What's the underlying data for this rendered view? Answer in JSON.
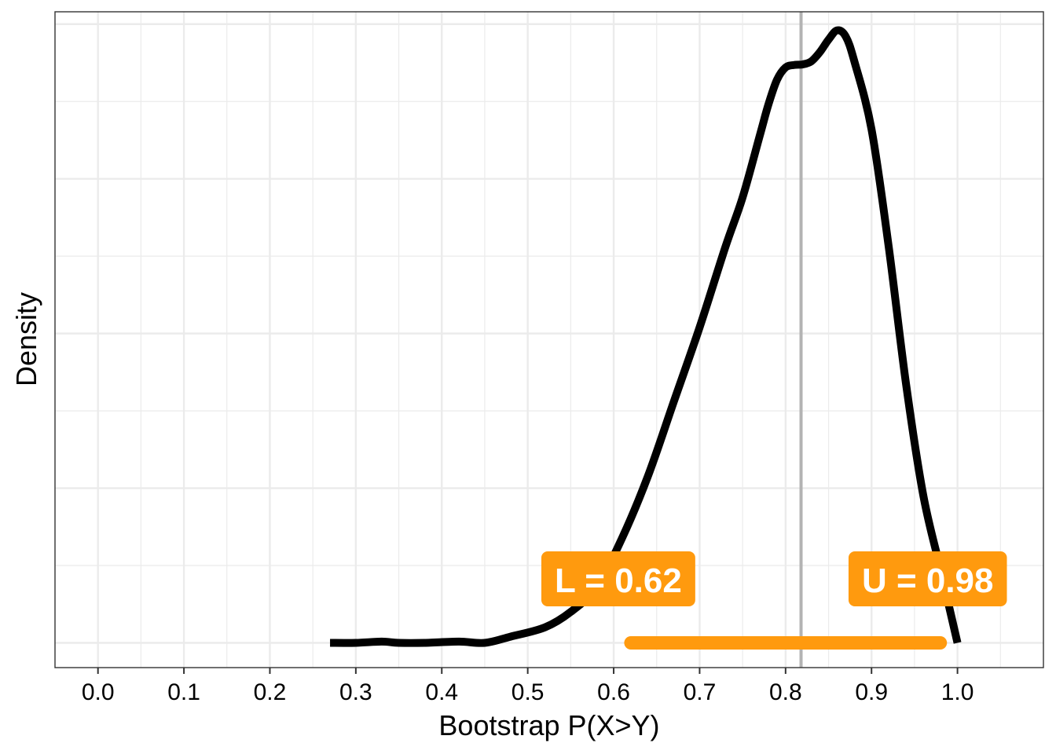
{
  "chart_data": {
    "type": "line",
    "title": "",
    "xlabel": "Bootstrap P(X>Y)",
    "ylabel": "Density",
    "xlim": [
      -0.05,
      1.1
    ],
    "ylim": [
      -0.04,
      1.02
    ],
    "x_ticks": [
      "0.0",
      "0.1",
      "0.2",
      "0.3",
      "0.4",
      "0.5",
      "0.6",
      "0.7",
      "0.8",
      "0.9",
      "1.0"
    ],
    "y_ticks_labeled": false,
    "grid": true,
    "legend": "none",
    "series": [
      {
        "x": [
          0.27,
          0.3,
          0.33,
          0.35,
          0.38,
          0.42,
          0.45,
          0.48,
          0.52,
          0.55,
          0.58,
          0.61,
          0.64,
          0.67,
          0.7,
          0.73,
          0.75,
          0.77,
          0.78,
          0.79,
          0.8,
          0.81,
          0.82,
          0.83,
          0.84,
          0.85,
          0.86,
          0.87,
          0.88,
          0.9,
          0.92,
          0.94,
          0.96,
          0.98,
          1.0
        ],
        "y": [
          0.0,
          0.0,
          0.002,
          0.0,
          0.0,
          0.002,
          0.0,
          0.01,
          0.025,
          0.05,
          0.09,
          0.17,
          0.27,
          0.39,
          0.51,
          0.64,
          0.72,
          0.82,
          0.87,
          0.91,
          0.93,
          0.934,
          0.935,
          0.94,
          0.955,
          0.975,
          0.99,
          0.98,
          0.94,
          0.83,
          0.64,
          0.42,
          0.24,
          0.12,
          0.0
        ]
      }
    ],
    "vline": 0.818,
    "interval": {
      "lower": 0.62,
      "upper": 0.98
    },
    "annotations": [
      "L =  0.62",
      "U =  0.98"
    ],
    "colors": {
      "curve": "#000000",
      "interval": "#FF9A0E",
      "vline": "#B3B3B3",
      "grid": "#EBEBEB",
      "label_text": "#FFFFFF"
    }
  }
}
